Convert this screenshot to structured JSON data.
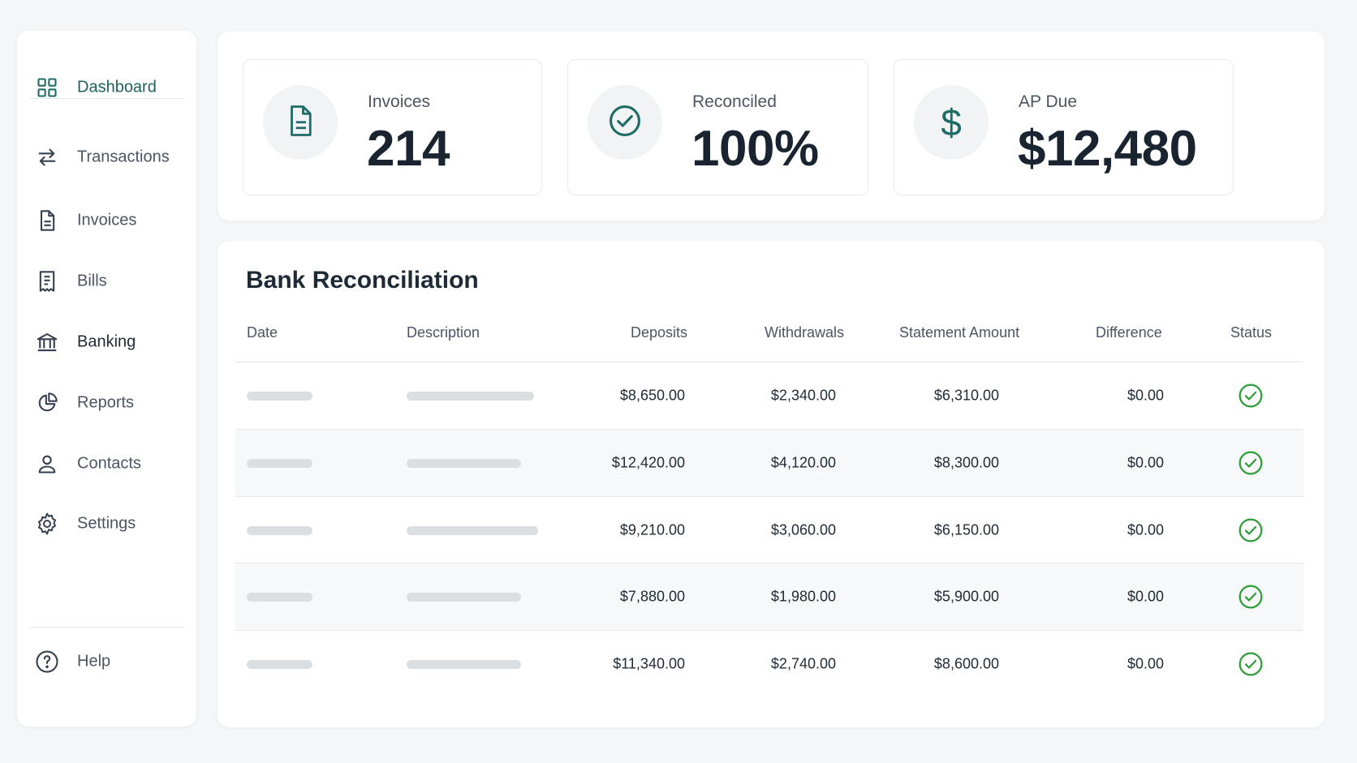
{
  "sidebar": {
    "items": [
      {
        "label": "Dashboard",
        "icon": "grid-icon"
      },
      {
        "label": "Transactions",
        "icon": "swap-arrows-icon"
      },
      {
        "label": "Invoices",
        "icon": "document-icon"
      },
      {
        "label": "Bills",
        "icon": "receipt-icon"
      },
      {
        "label": "Banking",
        "icon": "bank-icon"
      },
      {
        "label": "Reports",
        "icon": "pie-chart-icon"
      },
      {
        "label": "Contacts",
        "icon": "user-icon"
      },
      {
        "label": "Settings",
        "icon": "gear-icon"
      }
    ],
    "help": {
      "label": "Help",
      "icon": "help-circle-icon"
    }
  },
  "stats": [
    {
      "label": "Invoices",
      "value": "214",
      "icon": "document-icon"
    },
    {
      "label": "Reconciled",
      "value": "100%",
      "icon": "check-circle-icon"
    },
    {
      "label": "AP Due",
      "value": "$12,480",
      "icon": "dollar-icon"
    }
  ],
  "reconciliation": {
    "title": "Bank Reconciliation",
    "columns": [
      "Date",
      "Description",
      "Deposits",
      "Withdrawals",
      "Statement Amount",
      "Difference",
      "Status"
    ],
    "rows": [
      {
        "deposits": "$8,650.00",
        "withdrawals": "$2,340.00",
        "statement": "$6,310.00",
        "difference": "$0.00",
        "status": "reconciled"
      },
      {
        "deposits": "$12,420.00",
        "withdrawals": "$4,120.00",
        "statement": "$8,300.00",
        "difference": "$0.00",
        "status": "reconciled"
      },
      {
        "deposits": "$9,210.00",
        "withdrawals": "$3,060.00",
        "statement": "$6,150.00",
        "difference": "$0.00",
        "status": "reconciled"
      },
      {
        "deposits": "$7,880.00",
        "withdrawals": "$1,980.00",
        "statement": "$5,900.00",
        "difference": "$0.00",
        "status": "reconciled"
      },
      {
        "deposits": "$11,340.00",
        "withdrawals": "$2,740.00",
        "statement": "$8,600.00",
        "difference": "$0.00",
        "status": "reconciled"
      }
    ]
  },
  "colors": {
    "accent": "#1f6b66",
    "success": "#2e9d3a",
    "skeleton": "#dcdfe2"
  }
}
